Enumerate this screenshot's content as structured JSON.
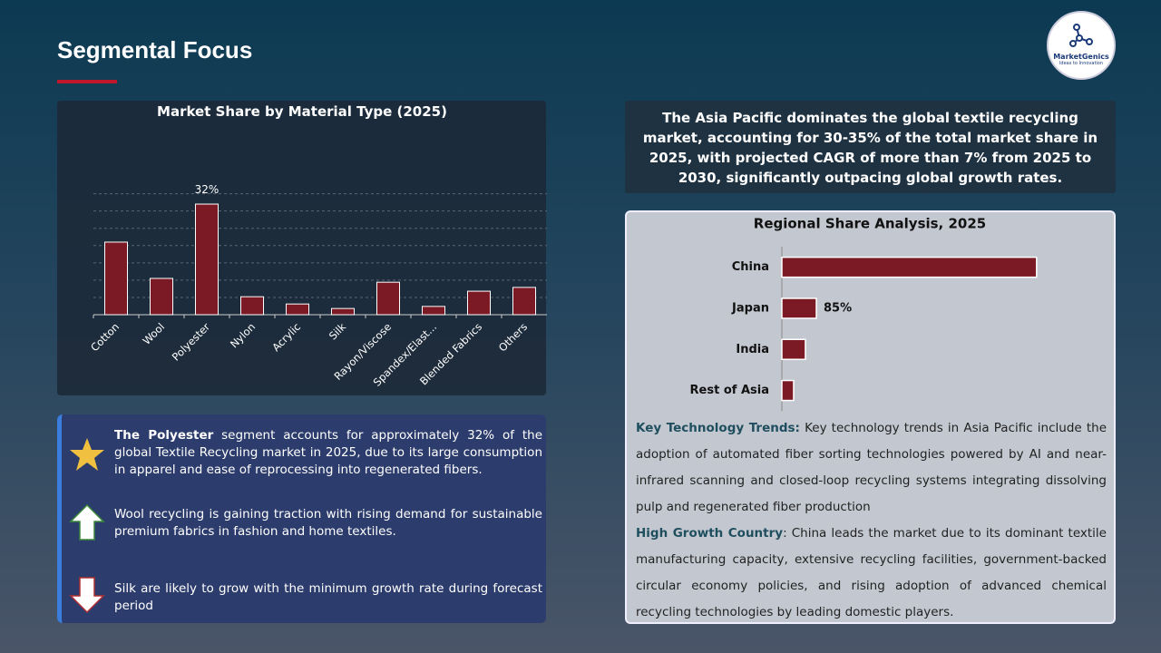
{
  "header": {
    "title": "Segmental Focus"
  },
  "logo": {
    "name": "MarketGenics",
    "tagline": "Ideas to Innovation"
  },
  "chart_data": [
    {
      "type": "bar",
      "title": "Market Share by Material Type (2025)",
      "categories": [
        "Cotton",
        "Wool",
        "Polyester",
        "Nylon",
        "Acrylic",
        "Silk",
        "Rayon/Viscose",
        "Spandex/Elast...",
        "Blended Fabrics",
        "Others"
      ],
      "values": [
        21,
        10.5,
        32,
        5.2,
        3.1,
        1.8,
        9.4,
        2.4,
        6.8,
        7.9
      ],
      "value_labels": [
        null,
        null,
        "32%",
        null,
        null,
        null,
        null,
        null,
        null,
        null
      ],
      "color": "#7b1a24",
      "ylim": [
        0,
        35
      ],
      "yticks": [
        0,
        5,
        10,
        15,
        20,
        25,
        30,
        35
      ],
      "grid": true,
      "ytick_labels": false
    },
    {
      "type": "hbar",
      "title": "Regional Share Analysis, 2025",
      "categories": [
        "China",
        "Japan",
        "India",
        "Rest of Asia"
      ],
      "values": [
        628,
        85,
        58,
        29
      ],
      "value_labels": [
        null,
        "85%",
        null,
        null
      ],
      "color": "#7b1a24",
      "xlim": [
        0,
        700
      ]
    }
  ],
  "left_notes": [
    {
      "bold": "The Polyester",
      "text": " segment accounts for approximately 32% of the global Textile Recycling market in 2025, due to its large consumption in apparel and ease of reprocessing into regenerated fibers."
    },
    {
      "text": "Wool recycling is gaining traction with rising demand for sustainable premium fabrics in fashion and home textiles."
    },
    {
      "text": "Silk are likely to grow with the minimum growth rate during forecast period"
    }
  ],
  "summary": "The Asia Pacific dominates the global textile recycling  market, accounting for 30-35% of the total market share in 2025, with projected CAGR of more than 7% from 2025 to 2030, significantly outpacing global growth rates.",
  "right_notes": [
    {
      "label": "Key Technology Trends:",
      "text": " Key technology trends in Asia Pacific include the adoption of automated fiber sorting technologies powered by AI and near-infrared scanning and closed-loop recycling systems integrating dissolving pulp and regenerated fiber production"
    },
    {
      "label": "High Growth Country",
      "sep": ":",
      "text": " China leads the market due to its dominant textile manufacturing capacity, extensive recycling facilities, government-backed circular economy policies, and rising adoption of advanced chemical recycling technologies by leading domestic players."
    }
  ]
}
